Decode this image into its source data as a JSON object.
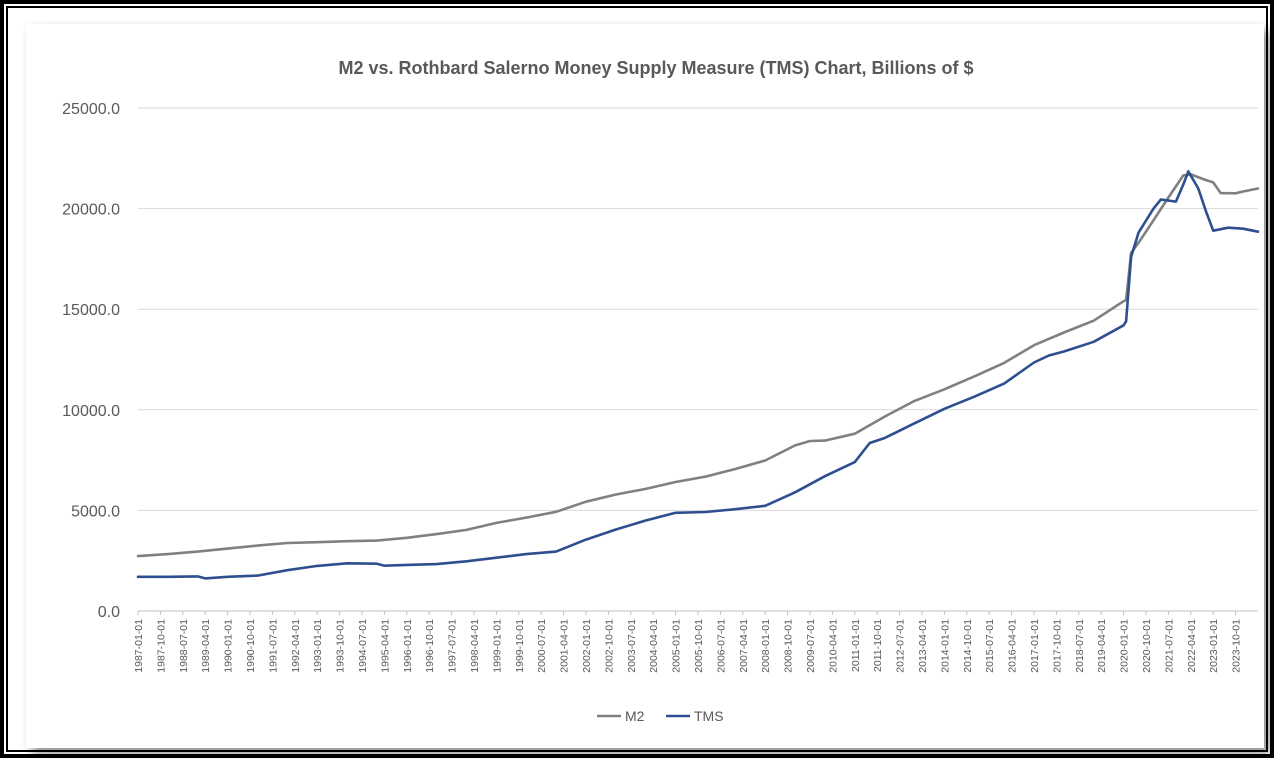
{
  "chart_data": {
    "type": "line",
    "title": "M2 vs. Rothbard Salerno Money Supply Measure (TMS) Chart, Billions of $",
    "xlabel": "",
    "ylabel": "",
    "ylim": [
      0,
      25000
    ],
    "y_ticks": [
      "0.0",
      "5000.0",
      "10000.0",
      "15000.0",
      "20000.0",
      "25000.0"
    ],
    "x_range": [
      "1987-01",
      "2024-07"
    ],
    "x_tick_labels": [
      "1987-01-01",
      "1987-10-01",
      "1988-07-01",
      "1989-04-01",
      "1990-01-01",
      "1990-10-01",
      "1991-07-01",
      "1992-04-01",
      "1993-01-01",
      "1993-10-01",
      "1994-07-01",
      "1995-04-01",
      "1996-01-01",
      "1996-10-01",
      "1997-07-01",
      "1998-04-01",
      "1999-01-01",
      "1999-10-01",
      "2000-07-01",
      "2001-04-01",
      "2002-01-01",
      "2002-10-01",
      "2003-07-01",
      "2004-04-01",
      "2005-01-01",
      "2005-10-01",
      "2006-07-01",
      "2007-04-01",
      "2008-01-01",
      "2008-10-01",
      "2009-07-01",
      "2010-04-01",
      "2011-01-01",
      "2011-10-01",
      "2012-07-01",
      "2013-04-01",
      "2014-01-01",
      "2014-10-01",
      "2015-07-01",
      "2016-04-01",
      "2017-01-01",
      "2017-10-01",
      "2018-07-01",
      "2019-04-01",
      "2020-01-01",
      "2020-10-01",
      "2021-07-01",
      "2022-04-01",
      "2023-01-01",
      "2023-10-01"
    ],
    "grid": true,
    "legend_position": "bottom",
    "series": [
      {
        "name": "M2",
        "color": "#808080",
        "points": [
          [
            "1987-01",
            2730
          ],
          [
            "1988-01",
            2830
          ],
          [
            "1989-01",
            2950
          ],
          [
            "1990-01",
            3100
          ],
          [
            "1991-01",
            3250
          ],
          [
            "1992-01",
            3380
          ],
          [
            "1993-01",
            3420
          ],
          [
            "1994-01",
            3470
          ],
          [
            "1995-01",
            3500
          ],
          [
            "1996-01",
            3640
          ],
          [
            "1997-01",
            3820
          ],
          [
            "1998-01",
            4030
          ],
          [
            "1999-01",
            4380
          ],
          [
            "2000-01",
            4640
          ],
          [
            "2001-01",
            4930
          ],
          [
            "2002-01",
            5430
          ],
          [
            "2003-01",
            5790
          ],
          [
            "2004-01",
            6070
          ],
          [
            "2005-01",
            6410
          ],
          [
            "2006-01",
            6680
          ],
          [
            "2007-01",
            7060
          ],
          [
            "2008-01",
            7480
          ],
          [
            "2009-01",
            8230
          ],
          [
            "2009-07",
            8450
          ],
          [
            "2010-01",
            8470
          ],
          [
            "2011-01",
            8810
          ],
          [
            "2012-01",
            9660
          ],
          [
            "2013-01",
            10440
          ],
          [
            "2014-01",
            11020
          ],
          [
            "2015-01",
            11660
          ],
          [
            "2016-01",
            12330
          ],
          [
            "2017-01",
            13210
          ],
          [
            "2018-01",
            13840
          ],
          [
            "2019-01",
            14430
          ],
          [
            "2020-01",
            15400
          ],
          [
            "2020-02",
            15450
          ],
          [
            "2020-04",
            17800
          ],
          [
            "2020-07",
            18300
          ],
          [
            "2021-01",
            19420
          ],
          [
            "2021-07",
            20550
          ],
          [
            "2022-01",
            21650
          ],
          [
            "2022-04",
            21700
          ],
          [
            "2022-10",
            21420
          ],
          [
            "2023-01",
            21300
          ],
          [
            "2023-04",
            20770
          ],
          [
            "2023-10",
            20760
          ],
          [
            "2024-01",
            20850
          ],
          [
            "2024-07",
            21000
          ]
        ]
      },
      {
        "name": "TMS",
        "color": "#2E4F8F",
        "points": [
          [
            "1987-01",
            1700
          ],
          [
            "1988-01",
            1700
          ],
          [
            "1989-01",
            1720
          ],
          [
            "1989-04",
            1620
          ],
          [
            "1990-01",
            1700
          ],
          [
            "1991-01",
            1760
          ],
          [
            "1992-01",
            2030
          ],
          [
            "1993-01",
            2240
          ],
          [
            "1994-01",
            2370
          ],
          [
            "1995-01",
            2350
          ],
          [
            "1995-04",
            2250
          ],
          [
            "1996-01",
            2290
          ],
          [
            "1997-01",
            2330
          ],
          [
            "1998-01",
            2470
          ],
          [
            "1999-01",
            2650
          ],
          [
            "2000-01",
            2830
          ],
          [
            "2001-01",
            2950
          ],
          [
            "2002-01",
            3550
          ],
          [
            "2003-01",
            4050
          ],
          [
            "2004-01",
            4500
          ],
          [
            "2005-01",
            4880
          ],
          [
            "2006-01",
            4920
          ],
          [
            "2007-01",
            5060
          ],
          [
            "2008-01",
            5230
          ],
          [
            "2009-01",
            5900
          ],
          [
            "2010-01",
            6700
          ],
          [
            "2011-01",
            7400
          ],
          [
            "2011-07",
            8350
          ],
          [
            "2012-01",
            8600
          ],
          [
            "2013-01",
            9330
          ],
          [
            "2014-01",
            10050
          ],
          [
            "2015-01",
            10650
          ],
          [
            "2016-01",
            11300
          ],
          [
            "2017-01",
            12350
          ],
          [
            "2017-07",
            12700
          ],
          [
            "2018-01",
            12900
          ],
          [
            "2019-01",
            13380
          ],
          [
            "2020-01",
            14200
          ],
          [
            "2020-02",
            14400
          ],
          [
            "2020-04",
            17600
          ],
          [
            "2020-07",
            18800
          ],
          [
            "2021-01",
            20000
          ],
          [
            "2021-04",
            20450
          ],
          [
            "2021-10",
            20350
          ],
          [
            "2022-01",
            21200
          ],
          [
            "2022-03",
            21850
          ],
          [
            "2022-07",
            21000
          ],
          [
            "2022-10",
            19900
          ],
          [
            "2023-01",
            18900
          ],
          [
            "2023-07",
            19050
          ],
          [
            "2024-01",
            19000
          ],
          [
            "2024-07",
            18850
          ]
        ]
      }
    ]
  }
}
